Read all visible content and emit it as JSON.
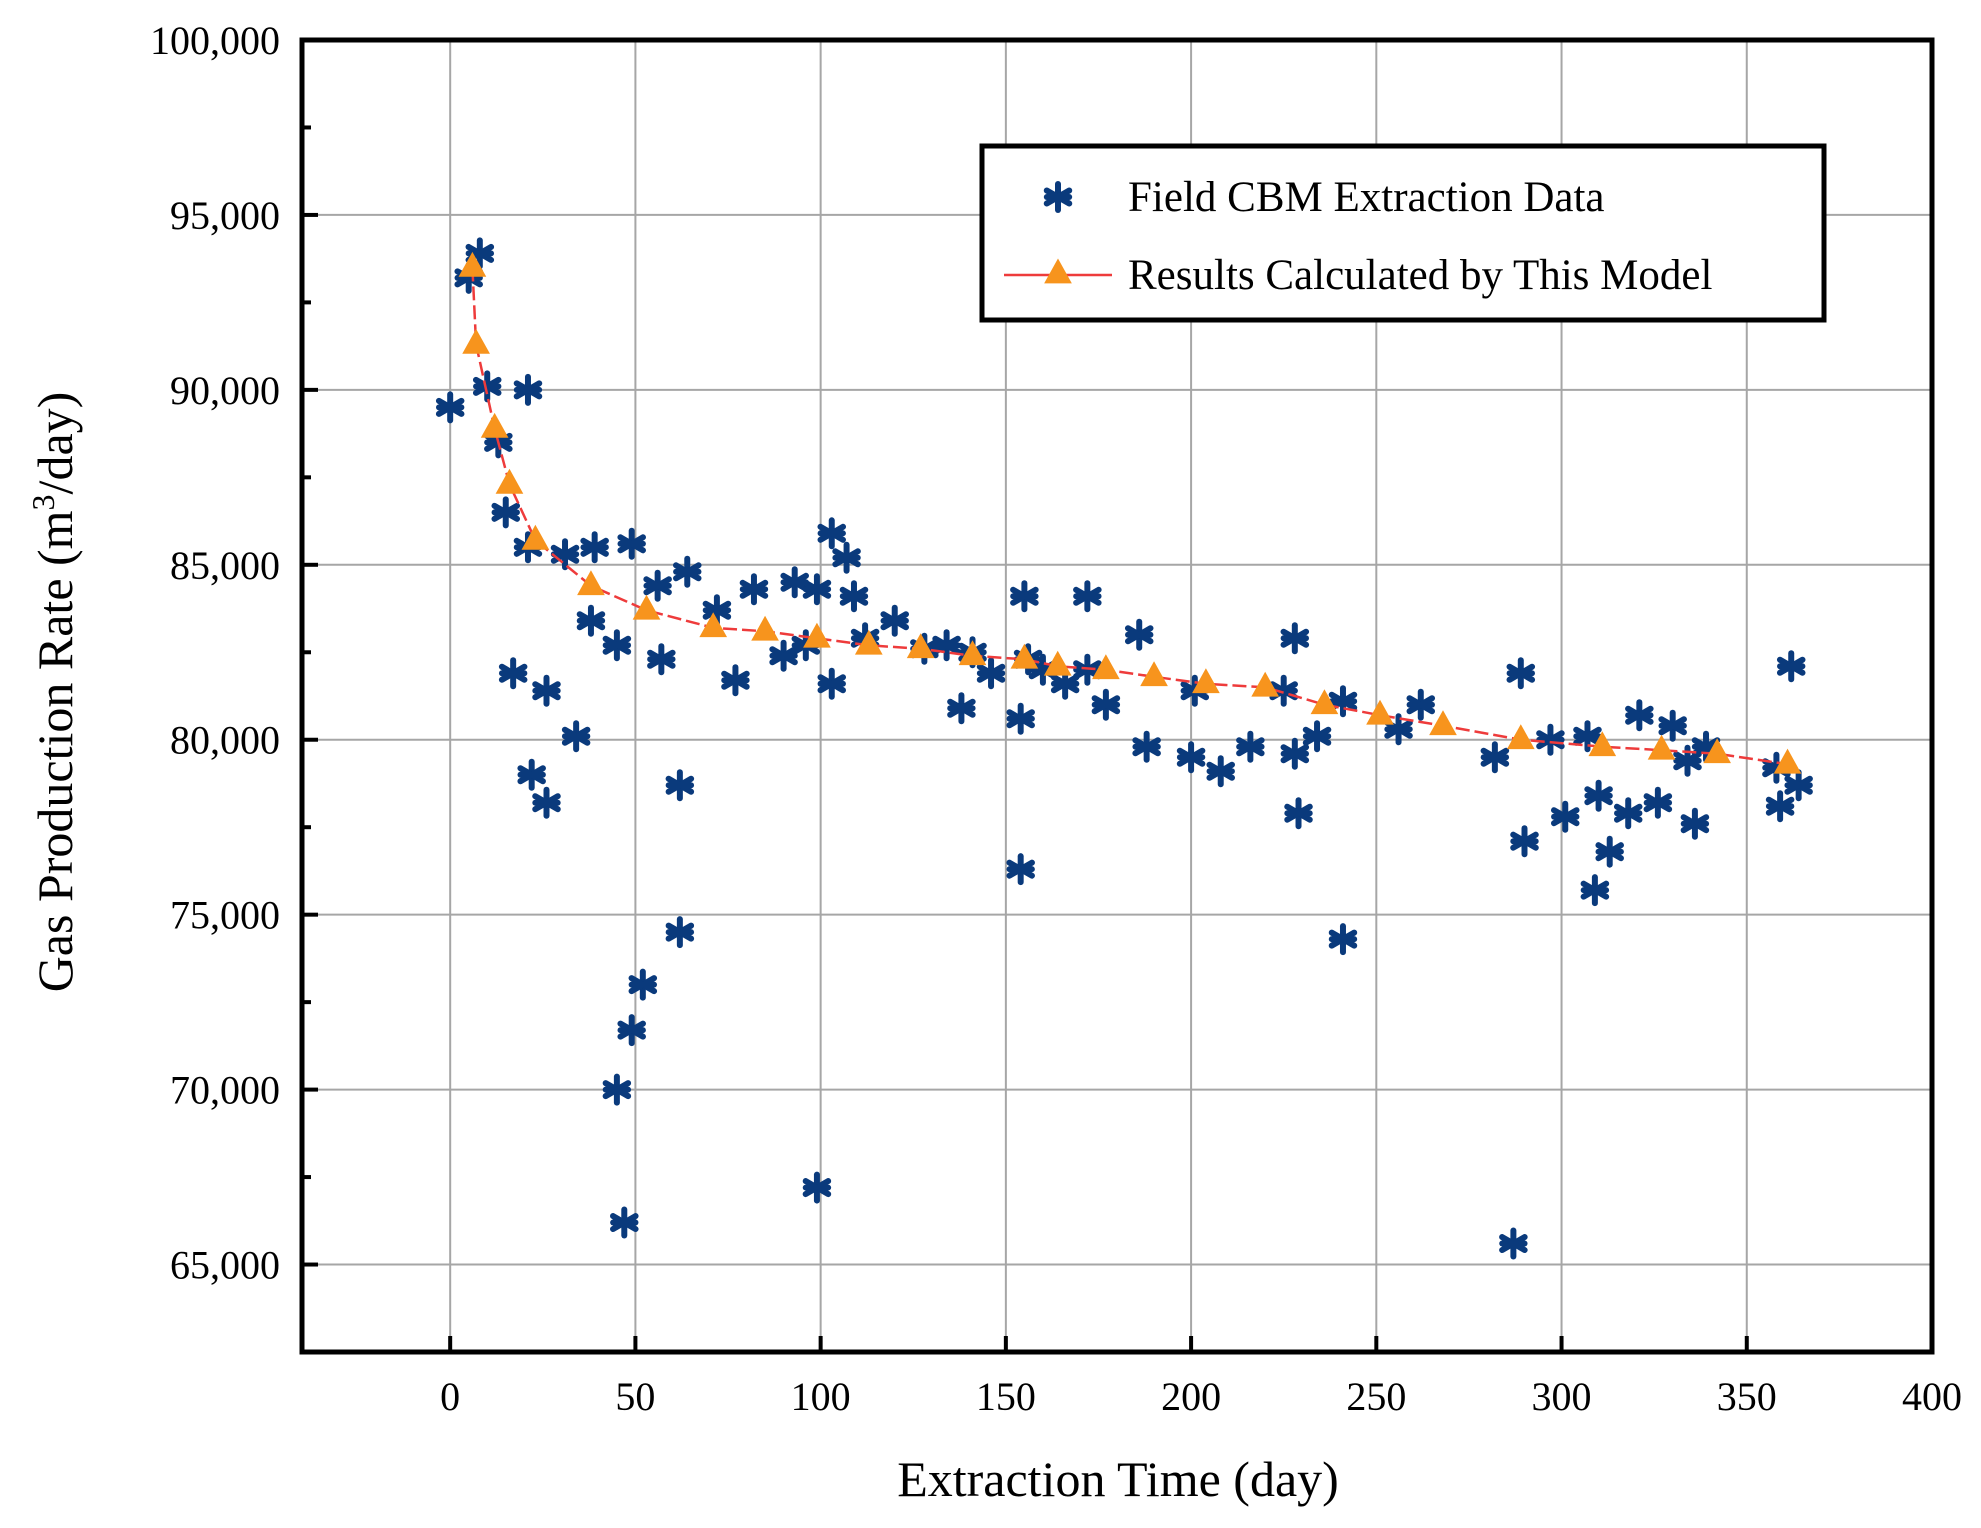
{
  "chart_data": {
    "type": "scatter",
    "title": "",
    "xlabel": "Extraction Time (day)",
    "ylabel_main": "Gas Production Rate (m",
    "ylabel_sup": "3",
    "ylabel_tail": "/day)",
    "xlim": [
      -40,
      400
    ],
    "ylim": [
      62500,
      100000
    ],
    "xticks": [
      0,
      50,
      100,
      150,
      200,
      250,
      300,
      350,
      400
    ],
    "xtick_labels": [
      "0",
      "50",
      "100",
      "150",
      "200",
      "250",
      "300",
      "350",
      "400"
    ],
    "yticks": [
      65000,
      70000,
      75000,
      80000,
      85000,
      90000,
      95000,
      100000
    ],
    "ytick_labels": [
      "65,000",
      "70,000",
      "75,000",
      "80,000",
      "85,000",
      "90,000",
      "95,000",
      "100,000"
    ],
    "grid": true,
    "legend_position": "top-right",
    "colors": {
      "field": "#0a3a7c",
      "model_line": "#ee3b3b",
      "model_marker": "#f7941d"
    },
    "series": [
      {
        "name": "Field CBM Extraction Data",
        "marker": "asterisk",
        "points": [
          [
            0,
            89500
          ],
          [
            5,
            93200
          ],
          [
            8,
            93900
          ],
          [
            10,
            90100
          ],
          [
            13,
            88500
          ],
          [
            15,
            86500
          ],
          [
            17,
            81900
          ],
          [
            21,
            85500
          ],
          [
            21,
            90000
          ],
          [
            22,
            79000
          ],
          [
            26,
            81400
          ],
          [
            26,
            78200
          ],
          [
            31,
            85300
          ],
          [
            34,
            80100
          ],
          [
            38,
            83400
          ],
          [
            39,
            85500
          ],
          [
            45,
            82700
          ],
          [
            45,
            70000
          ],
          [
            47,
            66200
          ],
          [
            49,
            85600
          ],
          [
            49,
            71700
          ],
          [
            52,
            73000
          ],
          [
            56,
            84400
          ],
          [
            57,
            82300
          ],
          [
            62,
            78700
          ],
          [
            62,
            74500
          ],
          [
            64,
            84800
          ],
          [
            72,
            83700
          ],
          [
            77,
            81700
          ],
          [
            82,
            84300
          ],
          [
            90,
            82400
          ],
          [
            93,
            84500
          ],
          [
            96,
            82700
          ],
          [
            99,
            84300
          ],
          [
            99,
            67200
          ],
          [
            103,
            85900
          ],
          [
            103,
            81600
          ],
          [
            107,
            85200
          ],
          [
            109,
            84100
          ],
          [
            112,
            82900
          ],
          [
            120,
            83400
          ],
          [
            128,
            82600
          ],
          [
            134,
            82700
          ],
          [
            138,
            80900
          ],
          [
            141,
            82500
          ],
          [
            146,
            81900
          ],
          [
            154,
            80600
          ],
          [
            154,
            76300
          ],
          [
            155,
            84100
          ],
          [
            156,
            82300
          ],
          [
            160,
            82000
          ],
          [
            166,
            81600
          ],
          [
            172,
            84100
          ],
          [
            172,
            82000
          ],
          [
            177,
            81000
          ],
          [
            186,
            83000
          ],
          [
            188,
            79800
          ],
          [
            200,
            79500
          ],
          [
            201,
            81400
          ],
          [
            208,
            79100
          ],
          [
            216,
            79800
          ],
          [
            225,
            81400
          ],
          [
            228,
            82900
          ],
          [
            228,
            79600
          ],
          [
            229,
            77900
          ],
          [
            234,
            80100
          ],
          [
            241,
            81100
          ],
          [
            241,
            74300
          ],
          [
            256,
            80300
          ],
          [
            262,
            81000
          ],
          [
            282,
            79500
          ],
          [
            287,
            65600
          ],
          [
            289,
            81900
          ],
          [
            290,
            77100
          ],
          [
            297,
            80000
          ],
          [
            301,
            77800
          ],
          [
            307,
            80100
          ],
          [
            309,
            75700
          ],
          [
            310,
            78400
          ],
          [
            313,
            76800
          ],
          [
            318,
            77900
          ],
          [
            321,
            80700
          ],
          [
            326,
            78200
          ],
          [
            330,
            80400
          ],
          [
            334,
            79400
          ],
          [
            336,
            77600
          ],
          [
            339,
            79800
          ],
          [
            358,
            79200
          ],
          [
            359,
            78100
          ],
          [
            362,
            82100
          ],
          [
            364,
            78700
          ]
        ]
      },
      {
        "name": "Results Calculated by This Model",
        "marker": "triangle",
        "points": [
          [
            6,
            93500
          ],
          [
            7,
            91300
          ],
          [
            12,
            88900
          ],
          [
            16,
            87300
          ],
          [
            23,
            85700
          ],
          [
            38,
            84400
          ],
          [
            53,
            83700
          ],
          [
            71,
            83200
          ],
          [
            85,
            83100
          ],
          [
            99,
            82900
          ],
          [
            113,
            82700
          ],
          [
            127,
            82600
          ],
          [
            141,
            82400
          ],
          [
            155,
            82300
          ],
          [
            164,
            82100
          ],
          [
            177,
            82000
          ],
          [
            190,
            81800
          ],
          [
            204,
            81600
          ],
          [
            220,
            81500
          ],
          [
            236,
            81000
          ],
          [
            251,
            80700
          ],
          [
            268,
            80400
          ],
          [
            289,
            80000
          ],
          [
            311,
            79800
          ],
          [
            327,
            79700
          ],
          [
            342,
            79600
          ],
          [
            361,
            79300
          ]
        ]
      }
    ]
  }
}
